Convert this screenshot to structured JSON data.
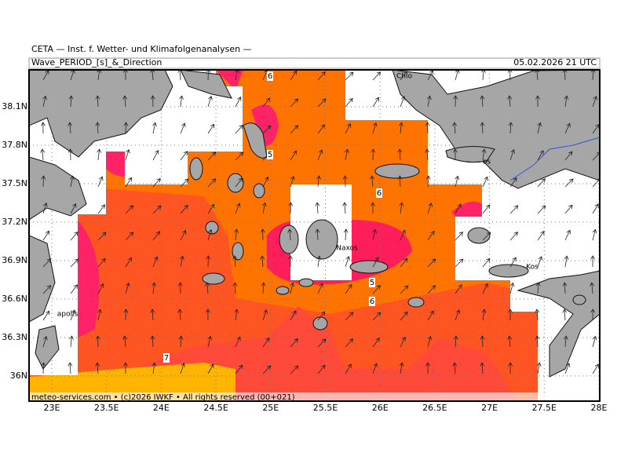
{
  "header": {
    "source": "CETA — Inst. f. Wetter- und Klimafolgenanalysen —",
    "title": "Wave_PERIOD_[s]_&_Direction",
    "date": "05.02.2026 21 UTC"
  },
  "map": {
    "lon_ticks": [
      {
        "value": 23,
        "label": "23E"
      },
      {
        "value": 23.5,
        "label": "23.5E"
      },
      {
        "value": 24,
        "label": "24E"
      },
      {
        "value": 24.5,
        "label": "24.5E"
      },
      {
        "value": 25,
        "label": "25E"
      },
      {
        "value": 25.5,
        "label": "25.5E"
      },
      {
        "value": 26,
        "label": "26E"
      },
      {
        "value": 26.5,
        "label": "26.5E"
      },
      {
        "value": 27,
        "label": "27E"
      },
      {
        "value": 27.5,
        "label": "27.5E"
      },
      {
        "value": 28,
        "label": "28E"
      }
    ],
    "lat_ticks": [
      {
        "value": 38.1,
        "label": "38.1N"
      },
      {
        "value": 37.8,
        "label": "37.8N"
      },
      {
        "value": 37.5,
        "label": "37.5N"
      },
      {
        "value": 37.2,
        "label": "37.2N"
      },
      {
        "value": 36.9,
        "label": "36.9N"
      },
      {
        "value": 36.6,
        "label": "36.6N"
      },
      {
        "value": 36.3,
        "label": "36.3N"
      },
      {
        "value": 36,
        "label": "36N"
      }
    ],
    "places": [
      "Chio",
      "Naxos",
      "Kos",
      "apolis",
      "os"
    ],
    "contour_labels": [
      6,
      5,
      6,
      5,
      6,
      7
    ]
  },
  "footer": "meteo-services.com • (c)2026 IWKF • All rights reserved (00+021)"
}
